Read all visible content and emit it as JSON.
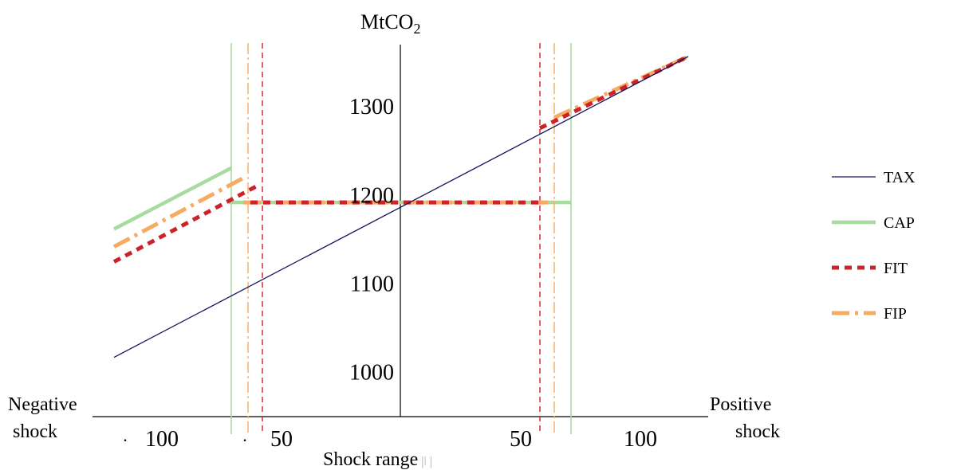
{
  "chart_data": {
    "type": "line",
    "ylabel_main": "MtCO",
    "ylabel_sub": "2",
    "xlabel": "Shock range",
    "xlabel_suffix": "|ǀ |",
    "x_left_label": [
      "Negative",
      "shock"
    ],
    "x_right_label": [
      "Positive",
      "shock"
    ],
    "x_ticks": [
      {
        "value": -100,
        "prefix": "·",
        "label": "100"
      },
      {
        "value": -50,
        "prefix": "·",
        "label": "50"
      },
      {
        "value": 50,
        "prefix": "",
        "label": "50"
      },
      {
        "value": 100,
        "prefix": "",
        "label": "100"
      }
    ],
    "y_ticks": [
      1000,
      1100,
      1200,
      1300
    ],
    "xlim": [
      -125,
      125
    ],
    "ylim": [
      950,
      1365
    ],
    "legend_position": "right",
    "series": [
      {
        "name": "TAX",
        "color": "#14145e",
        "style": "solid-thin",
        "segments": [
          [
            [
              -120,
              1017
            ],
            [
              -50,
              1087
            ]
          ],
          [
            [
              -50,
              1087
            ],
            [
              62,
              1192
            ]
          ],
          [
            [
              62,
              1192
            ],
            [
              120,
              1357
            ]
          ]
        ],
        "line_pts": [
          [
            -120,
            1017
          ],
          [
            120,
            1357
          ]
        ]
      },
      {
        "name": "CAP",
        "color": "#a8dba0",
        "style": "solid-thick",
        "segments": [
          [
            [
              -120,
              1162
            ],
            [
              -71,
              1231
            ]
          ],
          [
            [
              -72,
              1192
            ],
            [
              71,
              1192
            ]
          ]
        ]
      },
      {
        "name": "FIT",
        "color": "#cc2228",
        "style": "dashed-thick",
        "segments": [
          [
            [
              -120,
              1125
            ],
            [
              -60,
              1211
            ]
          ],
          [
            [
              -63,
              1192
            ],
            [
              58,
              1192
            ]
          ],
          [
            [
              58,
              1276
            ],
            [
              120,
              1357
            ]
          ]
        ]
      },
      {
        "name": "FIP",
        "color": "#f7aa62",
        "style": "dashdot-thick",
        "segments": [
          [
            [
              -120,
              1142
            ],
            [
              -65,
              1221
            ]
          ],
          [
            [
              -66,
              1192
            ],
            [
              64,
              1192
            ]
          ],
          [
            [
              64,
              1288
            ],
            [
              120,
              1357
            ]
          ]
        ]
      }
    ],
    "vertical_lines": [
      {
        "series": "CAP",
        "x": -71
      },
      {
        "series": "FIP",
        "x": -64
      },
      {
        "series": "FIT",
        "x": -58
      },
      {
        "series": "FIT",
        "x": 58
      },
      {
        "series": "FIP",
        "x": 64
      },
      {
        "series": "CAP",
        "x": 71
      }
    ]
  }
}
